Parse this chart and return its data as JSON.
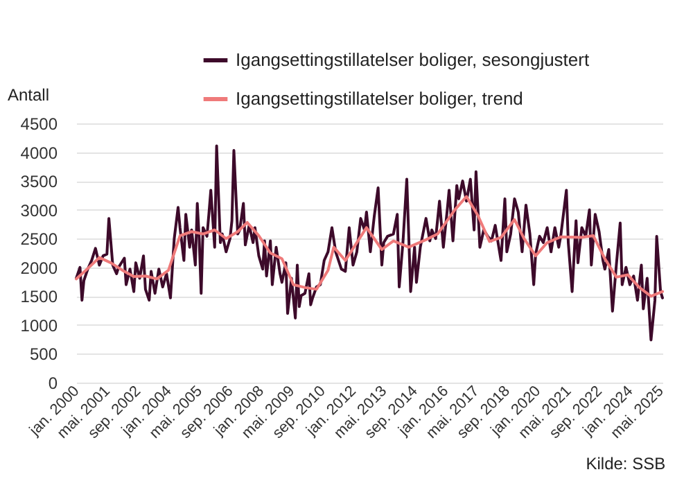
{
  "chart_data": {
    "type": "line",
    "ylabel": "Antall",
    "annotations": [
      "Kilde: SSB"
    ],
    "legend": "top",
    "grid": "y",
    "marker": "none",
    "line_style": "solid",
    "ylim": [
      0,
      4500
    ],
    "yticks": [
      0,
      500,
      1000,
      1500,
      2000,
      2500,
      3000,
      3500,
      4000,
      4500
    ],
    "xlim": [
      "2000-01",
      "2025-06"
    ],
    "xticks": [
      {
        "value": "2000-01",
        "label": "jan. 2000"
      },
      {
        "value": "2001-05",
        "label": "mai. 2001"
      },
      {
        "value": "2002-09",
        "label": "sep. 2002"
      },
      {
        "value": "2004-01",
        "label": "jan. 2004"
      },
      {
        "value": "2005-05",
        "label": "mai. 2005"
      },
      {
        "value": "2006-09",
        "label": "sep. 2006"
      },
      {
        "value": "2008-01",
        "label": "jan. 2008"
      },
      {
        "value": "2009-05",
        "label": "mai. 2009"
      },
      {
        "value": "2010-09",
        "label": "sep. 2010"
      },
      {
        "value": "2012-01",
        "label": "jan. 2012"
      },
      {
        "value": "2013-05",
        "label": "mai. 2013"
      },
      {
        "value": "2014-09",
        "label": "sep. 2014"
      },
      {
        "value": "2016-01",
        "label": "jan. 2016"
      },
      {
        "value": "2017-05",
        "label": "mai. 2017"
      },
      {
        "value": "2018-09",
        "label": "sep. 2018"
      },
      {
        "value": "2020-01",
        "label": "jan. 2020"
      },
      {
        "value": "2021-05",
        "label": "mai. 2021"
      },
      {
        "value": "2022-09",
        "label": "sep. 2022"
      },
      {
        "value": "2024-01",
        "label": "jan. 2024"
      },
      {
        "value": "2025-05",
        "label": "mai. 2025"
      }
    ],
    "series": [
      {
        "name": "Igangsettingstillatelser boliger, sesongjustert",
        "color": "#3d0a2a",
        "x": [
          "2000-01",
          "2000-03",
          "2000-04",
          "2000-05",
          "2000-07",
          "2000-09",
          "2000-11",
          "2001-01",
          "2001-03",
          "2001-05",
          "2001-06",
          "2001-08",
          "2001-10",
          "2001-11",
          "2002-02",
          "2002-03",
          "2002-05",
          "2002-07",
          "2002-08",
          "2002-10",
          "2002-12",
          "2003-01",
          "2003-03",
          "2003-04",
          "2003-06",
          "2003-08",
          "2003-10",
          "2003-12",
          "2004-02",
          "2004-04",
          "2004-06",
          "2004-07",
          "2004-09",
          "2004-10",
          "2004-12",
          "2005-01",
          "2005-03",
          "2005-04",
          "2005-05",
          "2005-06",
          "2005-07",
          "2005-09",
          "2005-10",
          "2005-11",
          "2006-01",
          "2006-02",
          "2006-04",
          "2006-05",
          "2006-07",
          "2006-09",
          "2006-10",
          "2006-11",
          "2007-01",
          "2007-02",
          "2007-04",
          "2007-05",
          "2007-07",
          "2007-09",
          "2007-10",
          "2007-12",
          "2008-02",
          "2008-03",
          "2008-04",
          "2008-06",
          "2008-07",
          "2008-09",
          "2008-11",
          "2008-12",
          "2009-02",
          "2009-03",
          "2009-05",
          "2009-07",
          "2009-08",
          "2009-09",
          "2009-10",
          "2009-12",
          "2010-02",
          "2010-03",
          "2010-04",
          "2010-06",
          "2010-08",
          "2010-10",
          "2010-12",
          "2011-02",
          "2011-04",
          "2011-07",
          "2011-09",
          "2011-11",
          "2012-01",
          "2012-03",
          "2012-05",
          "2012-07",
          "2012-08",
          "2012-10",
          "2012-12",
          "2013-02",
          "2013-04",
          "2013-05",
          "2013-07",
          "2013-10",
          "2013-12",
          "2014-01",
          "2014-03",
          "2014-05",
          "2014-07",
          "2014-09",
          "2014-10",
          "2014-12",
          "2015-03",
          "2015-05",
          "2015-06",
          "2015-08",
          "2015-10",
          "2015-12",
          "2016-02",
          "2016-03",
          "2016-05",
          "2016-07",
          "2016-08",
          "2016-10",
          "2016-12",
          "2017-02",
          "2017-04",
          "2017-05",
          "2017-07",
          "2017-09",
          "2017-11",
          "2018-01",
          "2018-03",
          "2018-06",
          "2018-08",
          "2018-09",
          "2018-11",
          "2019-01",
          "2019-03",
          "2019-05",
          "2019-07",
          "2019-09",
          "2019-11",
          "2019-12",
          "2020-02",
          "2020-04",
          "2020-06",
          "2020-08",
          "2020-10",
          "2020-12",
          "2021-01",
          "2021-04",
          "2021-05",
          "2021-07",
          "2021-09",
          "2021-10",
          "2021-12",
          "2022-02",
          "2022-04",
          "2022-05",
          "2022-07",
          "2022-09",
          "2022-11",
          "2022-12",
          "2023-02",
          "2023-04",
          "2023-06",
          "2023-08",
          "2023-09",
          "2023-11",
          "2024-01",
          "2024-03",
          "2024-05",
          "2024-07",
          "2024-08",
          "2024-10",
          "2024-12",
          "2025-02",
          "2025-03",
          "2025-05",
          "2025-06"
        ],
        "values": [
          1810,
          2000,
          1430,
          1770,
          1970,
          2120,
          2330,
          2040,
          2200,
          2230,
          2850,
          2040,
          1890,
          2000,
          2160,
          1700,
          1970,
          1580,
          2080,
          1810,
          2200,
          1620,
          1430,
          1930,
          1550,
          1970,
          1660,
          1890,
          1470,
          2500,
          3040,
          2690,
          2120,
          2920,
          2350,
          2650,
          2040,
          3110,
          2500,
          1550,
          2690,
          2540,
          2920,
          3340,
          2350,
          4110,
          2430,
          2580,
          2270,
          2500,
          2810,
          4030,
          2580,
          2650,
          3110,
          2390,
          2730,
          2430,
          2690,
          2200,
          1970,
          2460,
          1850,
          2460,
          1700,
          2350,
          1890,
          1740,
          2080,
          1200,
          1810,
          1120,
          2040,
          1320,
          1510,
          1550,
          1890,
          1350,
          1470,
          1660,
          1700,
          2120,
          2270,
          2690,
          2270,
          1970,
          1930,
          2690,
          2040,
          2270,
          2850,
          2650,
          2960,
          2270,
          2880,
          3380,
          2040,
          2430,
          2540,
          2580,
          2920,
          1660,
          2430,
          3530,
          1580,
          2350,
          1740,
          2350,
          2850,
          2460,
          2650,
          2500,
          3150,
          2350,
          3000,
          3340,
          2460,
          3420,
          3190,
          3500,
          3150,
          3530,
          2650,
          3660,
          2350,
          2650,
          2540,
          2460,
          2730,
          2120,
          3190,
          2270,
          2580,
          3190,
          2960,
          2270,
          3080,
          2580,
          1700,
          2230,
          2540,
          2430,
          2690,
          2270,
          2690,
          2350,
          2540,
          3340,
          2430,
          1580,
          2810,
          2080,
          2690,
          2540,
          3000,
          2040,
          2920,
          2620,
          2120,
          1970,
          2310,
          1240,
          2040,
          2770,
          1700,
          2000,
          1700,
          1850,
          1430,
          2040,
          1280,
          1810,
          740,
          1430,
          2540,
          1580,
          1470
        ]
      },
      {
        "name": "Igangsettingstillatelser boliger, trend",
        "color": "#ef7a7a",
        "x": [
          "2000-01",
          "2000-06",
          "2001-01",
          "2001-07",
          "2002-01",
          "2002-07",
          "2003-01",
          "2003-07",
          "2004-01",
          "2004-07",
          "2005-01",
          "2005-07",
          "2006-01",
          "2006-07",
          "2007-01",
          "2007-06",
          "2007-12",
          "2008-06",
          "2008-12",
          "2009-06",
          "2009-12",
          "2010-06",
          "2010-12",
          "2011-03",
          "2011-09",
          "2012-08",
          "2013-04",
          "2013-10",
          "2014-06",
          "2015-03",
          "2015-09",
          "2016-06",
          "2016-12",
          "2017-06",
          "2017-12",
          "2018-06",
          "2019-01",
          "2019-06",
          "2019-12",
          "2020-06",
          "2021-01",
          "2021-12",
          "2022-06",
          "2022-12",
          "2023-06",
          "2023-12",
          "2024-06",
          "2024-12",
          "2025-06"
        ],
        "values": [
          1800,
          1950,
          2170,
          2080,
          1950,
          1840,
          1850,
          1800,
          1950,
          2550,
          2620,
          2580,
          2650,
          2500,
          2620,
          2780,
          2550,
          2250,
          2150,
          1700,
          1650,
          1620,
          1950,
          2350,
          2120,
          2690,
          2310,
          2460,
          2350,
          2480,
          2580,
          3000,
          3230,
          2900,
          2450,
          2520,
          2830,
          2500,
          2200,
          2430,
          2530,
          2520,
          2550,
          2150,
          1830,
          1870,
          1650,
          1500,
          1580
        ]
      }
    ]
  }
}
